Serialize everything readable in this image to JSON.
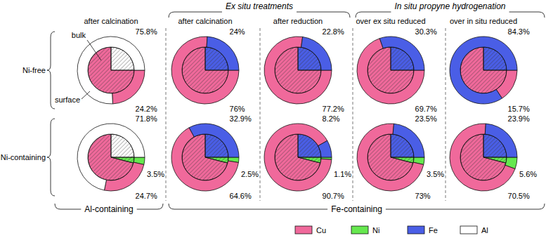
{
  "top_groups": [
    "Ex situ treatments",
    "In situ propyne hydrogenation"
  ],
  "bottom_groups": [
    "Al-containing",
    "Fe-containing"
  ],
  "rows": [
    "Ni-free",
    "Ni-containing"
  ],
  "columns": [
    "after calcination",
    "after calcination",
    "after reduction",
    "over ex situ reduced",
    "over in situ reduced"
  ],
  "figure_legend": {
    "names": [
      "Cu",
      "Ni",
      "Fe",
      "Al"
    ],
    "colors": [
      "#f0699b",
      "#66e84f",
      "#4a5ee6",
      "#ffffff"
    ]
  },
  "chart_data": [
    {
      "type": "pie",
      "categories": [
        "Cu",
        "Al"
      ],
      "colors": [
        "#f0699b",
        "#ffffff"
      ],
      "data_labels": true,
      "series": [
        {
          "name": "surface",
          "values": [
            24.2,
            75.8
          ],
          "value_labels": [
            "24.2%",
            "75.8%"
          ]
        },
        {
          "name": "bulk",
          "values": [
            75,
            25
          ]
        }
      ]
    },
    {
      "type": "pie",
      "categories": [
        "Cu",
        "Fe"
      ],
      "colors": [
        "#f0699b",
        "#4a5ee6"
      ],
      "data_labels": true,
      "series": [
        {
          "values": [
            76,
            24
          ],
          "value_labels": [
            "76%",
            "24%"
          ]
        },
        {
          "values": [
            75,
            25
          ]
        }
      ]
    },
    {
      "type": "pie",
      "categories": [
        "Cu",
        "Fe"
      ],
      "colors": [
        "#f0699b",
        "#4a5ee6"
      ],
      "data_labels": true,
      "series": [
        {
          "values": [
            77.2,
            22.8
          ],
          "value_labels": [
            "77.2%",
            "22.8%"
          ]
        },
        {
          "values": [
            75,
            25
          ]
        }
      ]
    },
    {
      "type": "pie",
      "categories": [
        "Cu",
        "Fe"
      ],
      "colors": [
        "#f0699b",
        "#4a5ee6"
      ],
      "data_labels": true,
      "series": [
        {
          "values": [
            69.7,
            30.3
          ],
          "value_labels": [
            "69.7%",
            "30.3%"
          ]
        },
        {
          "values": [
            75,
            25
          ]
        }
      ]
    },
    {
      "type": "pie",
      "categories": [
        "Cu",
        "Fe"
      ],
      "colors": [
        "#f0699b",
        "#4a5ee6"
      ],
      "data_labels": true,
      "series": [
        {
          "values": [
            15.7,
            84.3
          ],
          "value_labels": [
            "15.7%",
            "84.3%"
          ]
        },
        {
          "values": [
            75,
            25
          ]
        }
      ]
    },
    {
      "type": "pie",
      "categories": [
        "Ni",
        "Cu",
        "Al"
      ],
      "colors": [
        "#66e84f",
        "#f0699b",
        "#ffffff"
      ],
      "data_labels": true,
      "series": [
        {
          "values": [
            3.5,
            24.7,
            71.8
          ],
          "value_labels": [
            "3.5%",
            "24.7%",
            "71.8%"
          ]
        },
        {
          "values": [
            4,
            71,
            25
          ]
        }
      ]
    },
    {
      "type": "pie",
      "categories": [
        "Ni",
        "Cu",
        "Fe"
      ],
      "colors": [
        "#66e84f",
        "#f0699b",
        "#4a5ee6"
      ],
      "data_labels": true,
      "series": [
        {
          "values": [
            2.5,
            64.6,
            32.9
          ],
          "value_labels": [
            "2.5%",
            "64.6%",
            "32.9%"
          ]
        },
        {
          "values": [
            4,
            71,
            25
          ]
        }
      ]
    },
    {
      "type": "pie",
      "categories": [
        "Ni",
        "Cu",
        "Fe"
      ],
      "colors": [
        "#66e84f",
        "#f0699b",
        "#4a5ee6"
      ],
      "data_labels": true,
      "series": [
        {
          "values": [
            1.1,
            90.7,
            8.2
          ],
          "value_labels": [
            "1.1%",
            "90.7%",
            "8.2%"
          ]
        },
        {
          "values": [
            4,
            71,
            25
          ]
        }
      ]
    },
    {
      "type": "pie",
      "categories": [
        "Ni",
        "Cu",
        "Fe"
      ],
      "colors": [
        "#66e84f",
        "#f0699b",
        "#4a5ee6"
      ],
      "data_labels": true,
      "series": [
        {
          "values": [
            3.5,
            73,
            23.5
          ],
          "value_labels": [
            "3.5%",
            "73%",
            "23.5%"
          ]
        },
        {
          "values": [
            4,
            71,
            25
          ]
        }
      ]
    },
    {
      "type": "pie",
      "categories": [
        "Ni",
        "Cu",
        "Fe"
      ],
      "colors": [
        "#66e84f",
        "#f0699b",
        "#4a5ee6"
      ],
      "data_labels": true,
      "series": [
        {
          "values": [
            5.6,
            70.5,
            23.9
          ],
          "value_labels": [
            "5.6%",
            "70.5%",
            "23.9%"
          ]
        },
        {
          "values": [
            4,
            71,
            25
          ]
        }
      ]
    }
  ]
}
